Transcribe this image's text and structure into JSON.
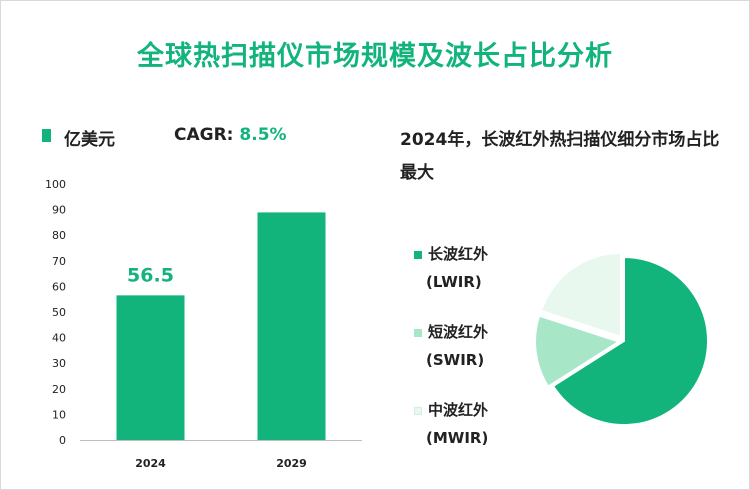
{
  "title": "全球热扫描仪市场规模及波长占比分析",
  "bar_section": {
    "unit_label": "亿美元",
    "cagr_label": "CAGR: ",
    "cagr_value": "8.5%"
  },
  "pie_section": {
    "title": "2024年，长波红外热扫描仪细分市场占比最大",
    "legend": [
      {
        "name": "长波红外",
        "abbr": "(LWIR)",
        "color": "#12b47c"
      },
      {
        "name": "短波红外",
        "abbr": "(SWIR)",
        "color": "#a8e6c8"
      },
      {
        "name": "中波红外",
        "abbr": "(MWIR)",
        "color": "#e8f8ef"
      }
    ]
  },
  "chart_data": [
    {
      "type": "bar",
      "categories": [
        "2024",
        "2029"
      ],
      "values": [
        56.5,
        88.9
      ],
      "data_labels": [
        "56.5",
        ""
      ],
      "ylim": [
        0,
        100
      ],
      "yticks": [
        0,
        10,
        20,
        30,
        40,
        50,
        60,
        70,
        80,
        90,
        100
      ],
      "color": "#12b47c",
      "grid": false
    },
    {
      "type": "pie",
      "labels": [
        "长波红外 (LWIR)",
        "短波红外 (SWIR)",
        "中波红外 (MWIR)"
      ],
      "values": [
        66,
        14,
        20
      ],
      "colors": [
        "#12b47c",
        "#a8e6c8",
        "#e8f8ef"
      ]
    }
  ]
}
